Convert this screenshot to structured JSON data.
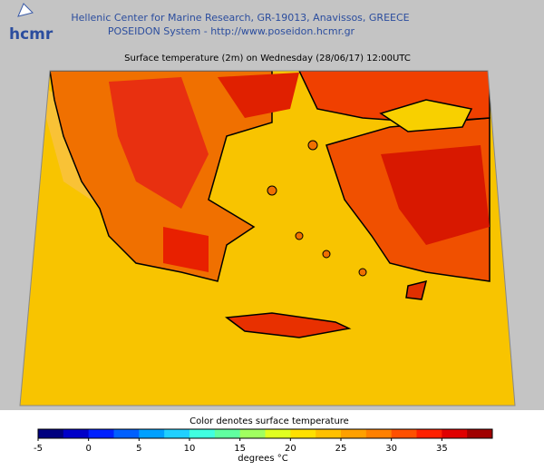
{
  "header": {
    "logo": "hcmr",
    "line1": "Hellenic Center for Marine Research, GR-19013, Anavissos, GREECE",
    "line2": "POSEIDON System - http://www.poseidon.hcmr.gr"
  },
  "title": "Surface temperature (2m) on Wednesday (28/06/17) 12:00UTC",
  "colorbar": {
    "title": "Color denotes surface temperature",
    "unit": "degrees °C",
    "range": [
      -5,
      40
    ],
    "ticks": [
      -5,
      0,
      5,
      10,
      15,
      20,
      25,
      30,
      35
    ],
    "colors": [
      "#00007f",
      "#0000c8",
      "#0020ff",
      "#0060ff",
      "#00a0ff",
      "#20d0ff",
      "#40ffe0",
      "#60ffa0",
      "#a0ff60",
      "#e0ff20",
      "#ffe000",
      "#ffc000",
      "#ffa000",
      "#ff8000",
      "#ff5000",
      "#ff2000",
      "#e00000",
      "#a00000"
    ]
  }
}
